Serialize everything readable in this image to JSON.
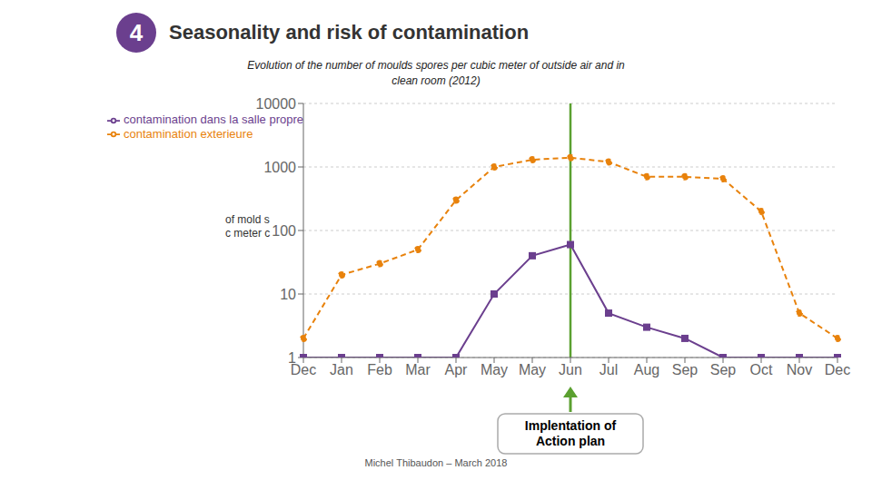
{
  "chart_data": {
    "type": "line",
    "title": "Seasonality and risk of contamination",
    "subtitle": "Evolution of the number of moulds spores per cubic meter of outside air and in\nclean room (2012)",
    "ylabel": "of mold s\nc meter c",
    "categories": [
      "Dec",
      "Jan",
      "Feb",
      "Mar",
      "Apr",
      "May",
      "May",
      "Jun",
      "Jul",
      "Aug",
      "Sep",
      "Sep",
      "Oct",
      "Nov",
      "Dec"
    ],
    "series": [
      {
        "name": "contamination exterieure",
        "color": "#E8820C",
        "marker": "circle",
        "line_style": "dashed",
        "values": [
          2,
          20,
          30,
          50,
          300,
          1000,
          1300,
          1400,
          1200,
          700,
          700,
          650,
          200,
          5,
          2
        ]
      },
      {
        "name": "contamination dans la salle propre",
        "color": "#6B3F8E",
        "marker": "square",
        "line_style": "solid",
        "values": [
          1,
          1,
          1,
          1,
          1,
          10,
          40,
          60,
          5,
          3,
          2,
          1,
          1,
          1,
          1
        ]
      }
    ],
    "log": "y",
    "ylim": [
      1,
      10000
    ],
    "yticks": [
      1,
      10,
      100,
      1000,
      10000
    ],
    "grid": true,
    "legend": "upper left",
    "annotations": [
      {
        "text": "Implentation of\nAction plan",
        "x": 7,
        "color": "#5BA030"
      },
      {
        "text": "4",
        "color": "#6B3F8E"
      },
      {
        "text": "Michel Thibaudon – March 2018"
      }
    ]
  }
}
